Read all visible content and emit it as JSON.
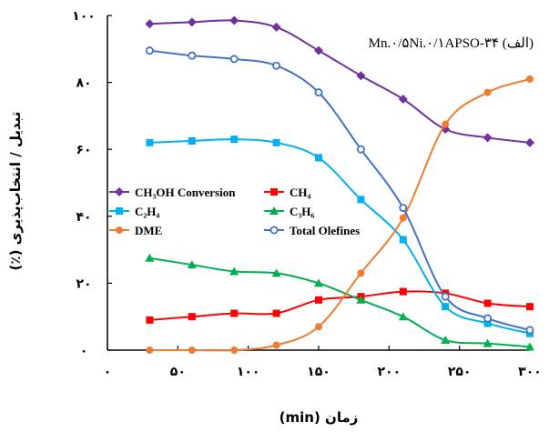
{
  "chart_data": {
    "type": "line",
    "annotation": "Mn.۰/۵Ni.۰/۱APSO-۳۴ (الف)",
    "xlabel": "زمان (min)",
    "ylabel": "تبدیل / انتخاب‌پذیری (٪)",
    "xlim": [
      0,
      300
    ],
    "ylim": [
      0,
      100
    ],
    "x_ticks": [
      0,
      50,
      100,
      150,
      200,
      250,
      300
    ],
    "y_ticks": [
      0,
      20,
      40,
      60,
      80,
      100
    ],
    "x_tick_labels": [
      "۰",
      "۵۰",
      "۱۰۰",
      "۱۵۰",
      "۲۰۰",
      "۲۵۰",
      "۳۰۰"
    ],
    "y_tick_labels": [
      "۰",
      "۲۰",
      "۴۰",
      "۶۰",
      "۸۰",
      "۱۰۰"
    ],
    "legend_position": "left-middle",
    "grid": false,
    "x": [
      30,
      60,
      90,
      120,
      150,
      180,
      210,
      240,
      270,
      300
    ],
    "series": [
      {
        "name": "CH₃OH Conversion",
        "color": "#7030a0",
        "marker": "diamond",
        "values": [
          97.5,
          98,
          98.5,
          96.5,
          89.5,
          82,
          75,
          66,
          63.5,
          62
        ]
      },
      {
        "name": "CH₄",
        "color": "#ff0000",
        "marker": "square",
        "values": [
          9,
          10,
          11,
          11,
          15,
          16,
          17.5,
          17,
          14,
          13
        ]
      },
      {
        "name": "C₂H₄",
        "color": "#00b0f0",
        "marker": "square",
        "values": [
          62,
          62.5,
          63,
          62,
          57.5,
          45,
          33,
          13,
          8,
          5
        ]
      },
      {
        "name": "C₃H₆",
        "color": "#00b050",
        "marker": "triangle",
        "values": [
          27.5,
          25.5,
          23.5,
          23,
          20,
          15,
          10,
          3,
          2,
          1
        ]
      },
      {
        "name": "DME",
        "color": "#ed7d31",
        "marker": "circle",
        "values": [
          0,
          0,
          0,
          1.5,
          7,
          23,
          39.5,
          67.5,
          77,
          81
        ]
      },
      {
        "name": "Total Olefines",
        "color": "#4472c4",
        "marker": "open-circle",
        "values": [
          89.5,
          88,
          87,
          85,
          77,
          60,
          42.5,
          16,
          9.5,
          6
        ]
      }
    ]
  }
}
